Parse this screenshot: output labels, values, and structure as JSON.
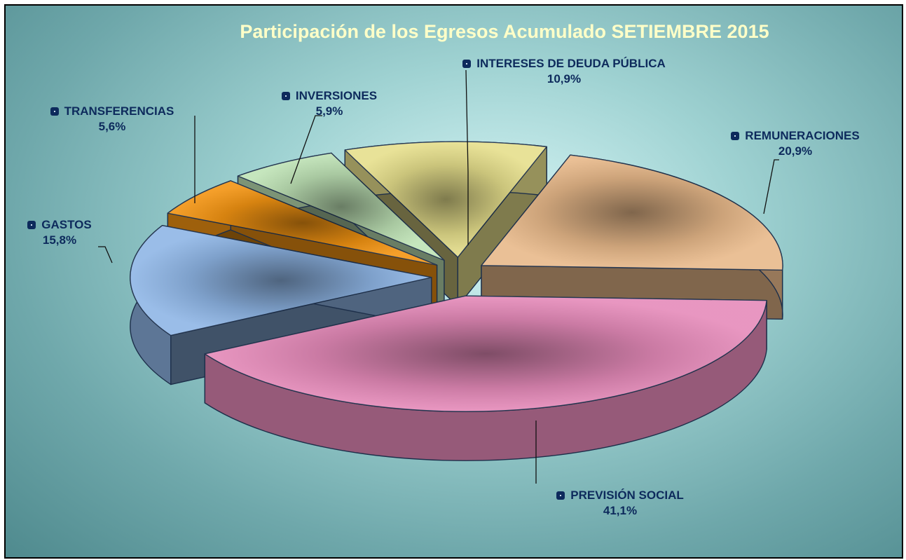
{
  "chart_data": {
    "type": "pie",
    "title": "Participación de los Egresos  Acumulado SETIEMBRE  2015",
    "categories": [
      "INTERESES DE DEUDA PÚBLICA",
      "REMUNERACIONES",
      "PREVISIÓN SOCIAL",
      "GASTOS",
      "TRANSFERENCIAS",
      "INVERSIONES"
    ],
    "values": [
      10.9,
      20.9,
      41.1,
      15.8,
      5.6,
      5.9
    ],
    "value_labels": [
      "10,9%",
      "20,9%",
      "41,1%",
      "15,8%",
      "5,6%",
      "5,9%"
    ],
    "colors": [
      "#e6df8c",
      "#e8b98a",
      "#e68bba",
      "#8fb6e6",
      "#f39412",
      "#bfe3b6"
    ]
  }
}
